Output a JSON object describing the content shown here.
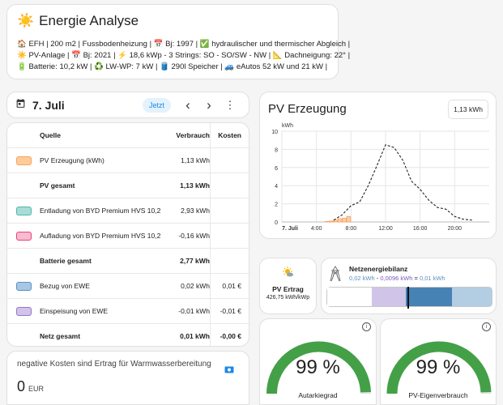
{
  "header": {
    "title_icon": "☀️",
    "title": "Energie Analyse",
    "line1": "🏠 EFH | 200 m2 | Fussbodenheizung | 📅 Bj: 1997 | ✅ hydraulischer und thermischer Abgleich |",
    "line2": "☀️ PV-Anlage | 📅 Bj: 2021 | ⚡ 18,6 kWp - 3 Strings: SO - SO/SW - NW | 📐 Dachneigung: 22° |",
    "line3": "🔋 Batterie: 10,2 kW | ♻️ LW-WP: 7 kW | 🛢️ 290l Speicher | 🚙 eAutos 52 kW und 21 kW |"
  },
  "date_bar": {
    "calendar_icon": "calendar-icon",
    "date": "7. Juli",
    "jetzt": "Jetzt",
    "prev": "‹",
    "next": "›",
    "more": "⋮"
  },
  "table": {
    "headers": {
      "quelle": "Quelle",
      "verbrauch": "Verbrauch",
      "kosten": "Kosten"
    },
    "rows": [
      {
        "quelle": "PV Erzeugung (kWh)",
        "verbrauch": "1,13 kWh",
        "kosten": "",
        "color": "#ffcc99",
        "border": "#f4a261",
        "bold": false
      },
      {
        "quelle": "PV gesamt",
        "verbrauch": "1,13 kWh",
        "kosten": "",
        "color": "",
        "border": "",
        "bold": true
      },
      {
        "quelle": "Entladung von BYD Premium HVS 10,2",
        "verbrauch": "2,93 kWh",
        "kosten": "",
        "color": "#a8dcd6",
        "border": "#4db6ac",
        "bold": false
      },
      {
        "quelle": "Aufladung von BYD Premium HVS 10,2",
        "verbrauch": "-0,16 kWh",
        "kosten": "",
        "color": "#f8bbd0",
        "border": "#ec407a",
        "bold": false
      },
      {
        "quelle": "Batterie gesamt",
        "verbrauch": "2,77 kWh",
        "kosten": "",
        "color": "",
        "border": "",
        "bold": true
      },
      {
        "quelle": "Bezug von EWE",
        "verbrauch": "0,02 kWh",
        "kosten": "0,01 €",
        "color": "#a9c6e2",
        "border": "#5a8fc2",
        "bold": false
      },
      {
        "quelle": "Einspeisung von EWE",
        "verbrauch": "-0,01 kWh",
        "kosten": "-0,01 €",
        "color": "#d1c4e9",
        "border": "#9575cd",
        "bold": false
      },
      {
        "quelle": "Netz gesamt",
        "verbrauch": "0,01 kWh",
        "kosten": "-0,00 €",
        "color": "",
        "border": "",
        "bold": true
      }
    ]
  },
  "neg_costs": {
    "label": "negative Kosten sind Ertrag für Warmwasserbereitung",
    "icon": "cash-icon",
    "value": "0",
    "unit": "EUR"
  },
  "pv_chart": {
    "title": "PV Erzeugung",
    "total": "1,13 kWh"
  },
  "chart_data": {
    "type": "bar",
    "title": "PV Erzeugung",
    "ylabel": "kWh",
    "ylim": [
      0,
      10
    ],
    "yticks": [
      "0",
      "2",
      "4",
      "6",
      "8",
      "10"
    ],
    "xticks": [
      "7. Juli",
      "4:00",
      "8:00",
      "12:00",
      "16:00",
      "20:00"
    ],
    "xlim": [
      0,
      24
    ],
    "series": [
      {
        "type": "bar",
        "color": "#f4a261",
        "x": [
          5,
          5.5,
          6,
          6.5,
          7,
          7.5
        ],
        "values": [
          0.05,
          0.1,
          0.2,
          0.35,
          0.4,
          0.6
        ]
      },
      {
        "type": "line",
        "style": "dashed",
        "color": "#222222",
        "x": [
          6,
          7,
          8,
          9,
          10,
          11,
          12,
          13,
          14,
          15,
          16,
          17,
          18,
          19,
          20,
          21,
          22
        ],
        "values": [
          0.2,
          0.8,
          1.8,
          2.2,
          4.0,
          6.2,
          8.5,
          8.2,
          6.8,
          4.5,
          3.6,
          2.4,
          1.6,
          1.4,
          0.6,
          0.3,
          0.2
        ]
      }
    ]
  },
  "pv_ertrag": {
    "icon": "sun-cloud-icon",
    "label": "PV Ertrag",
    "value": "426,75 kWh/kWp"
  },
  "netz": {
    "icon": "power-tower-icon",
    "title": "Netzenergiebilanz",
    "formula_a": "0,02 kWh",
    "formula_op1": " - ",
    "formula_b": "0,0096 kWh",
    "formula_op2": " = ",
    "formula_c": "0,01 kWh",
    "segments": [
      {
        "share": 0.27,
        "color": "#ffffff"
      },
      {
        "share": 0.21,
        "color": "#d1c4e9"
      },
      {
        "share": 0.28,
        "color": "#4682b4"
      },
      {
        "share": 0.24,
        "color": "#b3cde3"
      }
    ],
    "marker": 0.49
  },
  "gauges": [
    {
      "value": "99 %",
      "fraction": 0.99,
      "label": "Autarkiegrad",
      "color": "#43a047"
    },
    {
      "value": "99 %",
      "fraction": 0.99,
      "label": "PV-Eigenverbrauch",
      "color": "#43a047"
    }
  ]
}
